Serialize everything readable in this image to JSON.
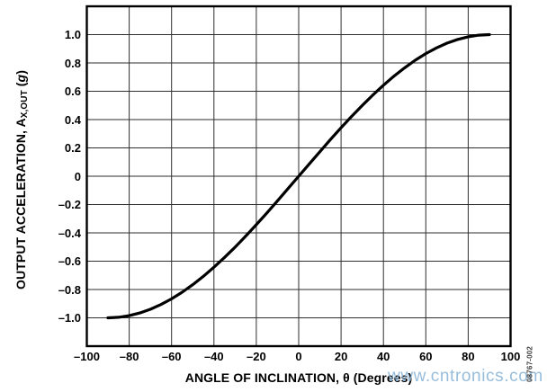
{
  "figure": {
    "background": "#ffffff",
    "watermark": {
      "text": "www.cntronics.com",
      "color": "#85b2d6"
    },
    "side_label": {
      "text": "08767-002",
      "color": "#3f3f3f"
    }
  },
  "chart_data": {
    "type": "line",
    "title": "",
    "xlabel": "ANGLE OF INCLINATION, θ (Degrees)",
    "ylabel": "OUTPUT ACCELERATION, AX,OUT (g)",
    "ylabel_parts": {
      "prefix": "OUTPUT ACCELERATION, A",
      "subscript": "X,OUT",
      "mid": " (",
      "italic_g": "g",
      "end": ")"
    },
    "xlim": [
      -100,
      100
    ],
    "ylim": [
      -1.2,
      1.2
    ],
    "grid": true,
    "x_grid_step": 20,
    "y_grid_step": 0.2,
    "legend": "none",
    "x_ticks": {
      "values": [
        -100,
        -80,
        -60,
        -40,
        -20,
        0,
        20,
        40,
        60,
        80,
        100
      ],
      "labels": [
        "–100",
        "–80",
        "–60",
        "–40",
        "–20",
        "0",
        "20",
        "40",
        "60",
        "80",
        "100"
      ]
    },
    "y_ticks": {
      "values": [
        1.0,
        0.8,
        0.6,
        0.4,
        0.2,
        0,
        -0.2,
        -0.4,
        -0.6,
        -0.8,
        -1.0
      ],
      "labels": [
        "1.0",
        "0.8",
        "0.6",
        "0.4",
        "0.2",
        "0",
        "–0.2",
        "–0.4",
        "–0.6",
        "–0.8",
        "–1.0"
      ]
    },
    "colors": {
      "grid": "#2e2e2e",
      "frame": "#000000",
      "line": "#000000",
      "text": "#000000"
    },
    "line_width": 3.2,
    "series": [
      {
        "x": [
          -90,
          -85,
          -80,
          -75,
          -70,
          -65,
          -60,
          -55,
          -50,
          -45,
          -40,
          -35,
          -30,
          -25,
          -20,
          -15,
          -10,
          -5,
          0,
          5,
          10,
          15,
          20,
          25,
          30,
          35,
          40,
          45,
          50,
          55,
          60,
          65,
          70,
          75,
          80,
          85,
          90
        ],
        "y": [
          -1,
          -0.9962,
          -0.9848,
          -0.9659,
          -0.9397,
          -0.9063,
          -0.866,
          -0.8192,
          -0.766,
          -0.7071,
          -0.6428,
          -0.5736,
          -0.5,
          -0.4226,
          -0.342,
          -0.2588,
          -0.1736,
          -0.0872,
          0,
          0.0872,
          0.1736,
          0.2588,
          0.342,
          0.4226,
          0.5,
          0.5736,
          0.6428,
          0.7071,
          0.766,
          0.8192,
          0.866,
          0.9063,
          0.9397,
          0.9659,
          0.9848,
          0.9962,
          1
        ]
      }
    ]
  }
}
